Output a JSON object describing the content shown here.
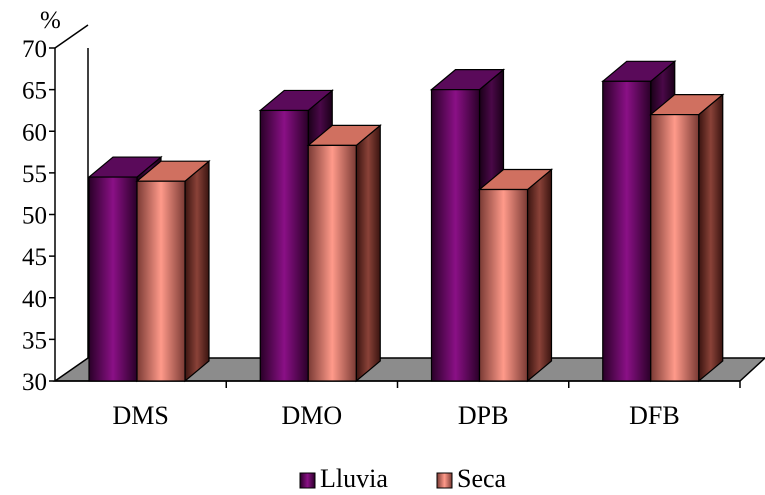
{
  "chart_data": {
    "type": "bar",
    "title": "",
    "xlabel": "",
    "ylabel": "%",
    "ylim": [
      30,
      70
    ],
    "yticks": [
      30,
      35,
      40,
      45,
      50,
      55,
      60,
      65,
      70
    ],
    "categories": [
      "DMS",
      "DMO",
      "DPB",
      "DFB"
    ],
    "series": [
      {
        "name": "Lluvia",
        "values": [
          54.5,
          62.5,
          65,
          66
        ],
        "color": "#7a0a7a"
      },
      {
        "name": "Seca",
        "values": [
          54,
          58.3,
          53,
          62
        ],
        "color": "#f08a7a"
      }
    ],
    "legend_position": "bottom",
    "three_d": true,
    "floor_color": "#8c8c8c",
    "grid": false
  }
}
